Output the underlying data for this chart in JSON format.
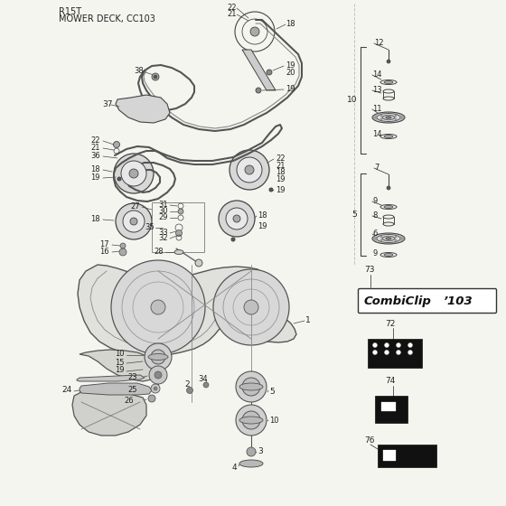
{
  "bg_color": "#f5f5f0",
  "line_color": "#444444",
  "text_color": "#222222",
  "fig_width": 5.6,
  "fig_height": 5.6,
  "dpi": 100,
  "title1": "R15T",
  "title2": "MOWER DECK, CC103"
}
